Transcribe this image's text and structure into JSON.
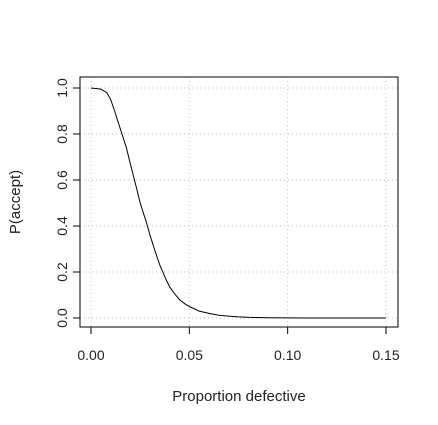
{
  "chart_data": {
    "type": "line",
    "title": "",
    "xlabel": "Proportion defective",
    "ylabel": "P(accept)",
    "xlim": [
      0.0,
      0.15
    ],
    "ylim": [
      0.0,
      1.0
    ],
    "x_ticks": [
      0.0,
      0.05,
      0.1,
      0.15
    ],
    "x_tick_labels": [
      "0.00",
      "0.05",
      "0.10",
      "0.15"
    ],
    "y_ticks": [
      0.0,
      0.2,
      0.4,
      0.6,
      0.8,
      1.0
    ],
    "y_tick_labels": [
      "0.0",
      "0.2",
      "0.4",
      "0.6",
      "0.8",
      "1.0"
    ],
    "grid": true,
    "colors": {
      "line": "#000000",
      "grid": "#bfbfbf",
      "axes": "#000000"
    },
    "series": [
      {
        "x": [
          0.0,
          0.005,
          0.008,
          0.01,
          0.012,
          0.015,
          0.018,
          0.02,
          0.023,
          0.025,
          0.028,
          0.03,
          0.033,
          0.035,
          0.038,
          0.04,
          0.043,
          0.045,
          0.048,
          0.05,
          0.055,
          0.06,
          0.065,
          0.07,
          0.075,
          0.08,
          0.085,
          0.09,
          0.1,
          0.11,
          0.12,
          0.13,
          0.14,
          0.15
        ],
        "y": [
          1.0,
          0.995,
          0.98,
          0.95,
          0.9,
          0.82,
          0.74,
          0.67,
          0.57,
          0.5,
          0.42,
          0.36,
          0.28,
          0.23,
          0.17,
          0.135,
          0.1,
          0.08,
          0.06,
          0.05,
          0.03,
          0.02,
          0.012,
          0.008,
          0.005,
          0.003,
          0.002,
          0.001,
          0.0005,
          0.0,
          0.0,
          0.0,
          0.0,
          0.0
        ]
      }
    ]
  }
}
